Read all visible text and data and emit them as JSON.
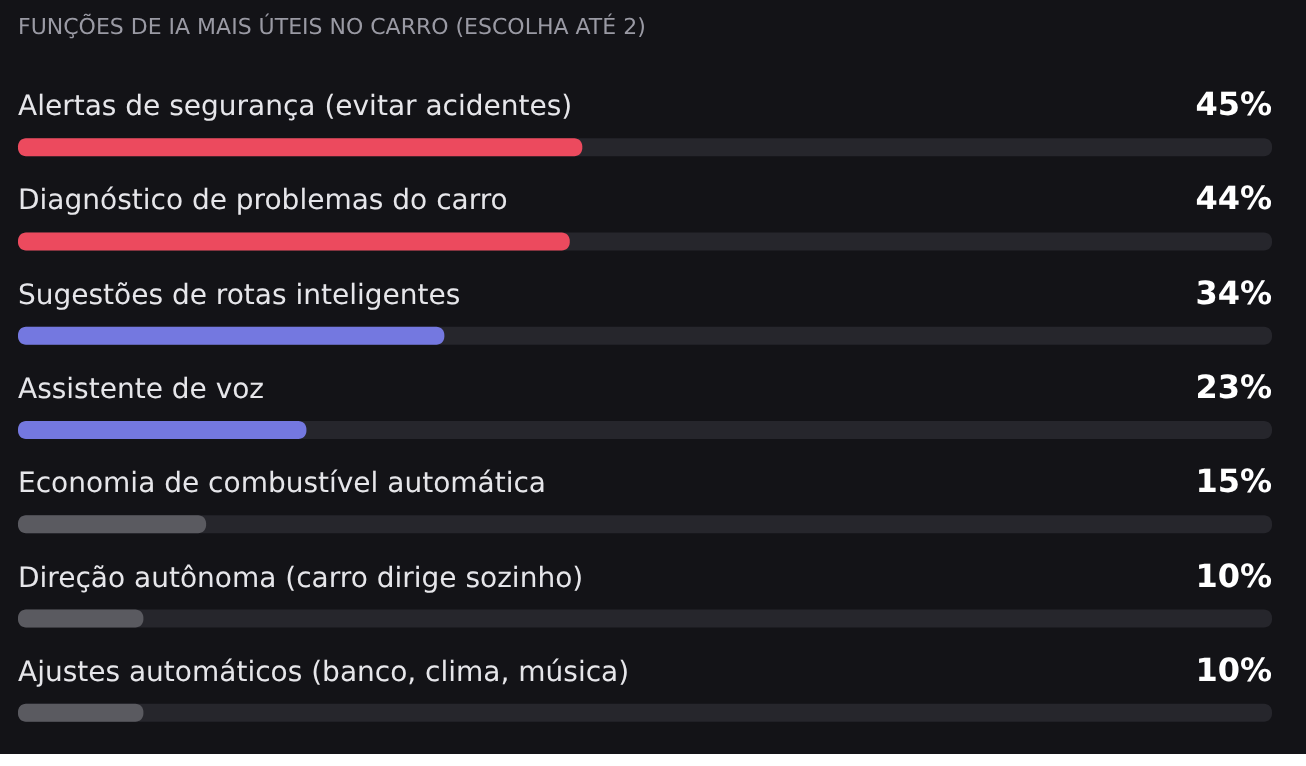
{
  "chart_data": {
    "type": "bar",
    "orientation": "horizontal",
    "title": "FUNÇÕES DE IA MAIS ÚTEIS NO CARRO (ESCOLHA ATÉ 2)",
    "categories": [
      "Alertas de segurança (evitar acidentes)",
      "Diagnóstico de problemas do carro",
      "Sugestões de rotas inteligentes",
      "Assistente de voz",
      "Economia de combustível automática",
      "Direção autônoma (carro dirige sozinho)",
      "Ajustes automáticos (banco, clima, música)"
    ],
    "series": [
      {
        "colors": [
          "#ec4a5e",
          "#ec4a5e",
          "#7478e0",
          "#7478e0",
          "#5a5a60",
          "#5a5a60",
          "#5a5a60"
        ],
        "values": [
          45,
          44,
          34,
          23,
          15,
          10,
          10
        ],
        "value_labels": [
          "45%",
          "44%",
          "34%",
          "23%",
          "15%",
          "10%",
          "10%"
        ]
      }
    ],
    "xlim": [
      0,
      100
    ],
    "tick_labels": false,
    "grid": false
  }
}
